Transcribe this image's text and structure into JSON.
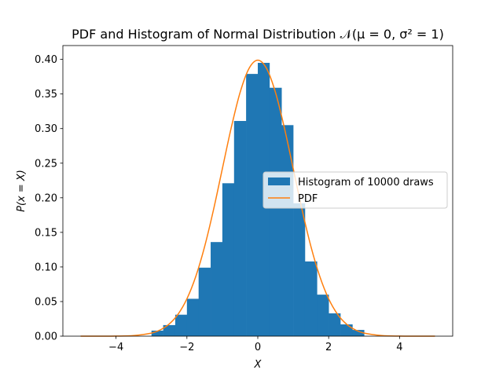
{
  "chart_data": {
    "type": "bar",
    "title": "PDF and Histogram of Normal Distribution 𝒩(μ = 0, σ² = 1)",
    "xlabel": "X",
    "ylabel": "P(x = X)",
    "xlim": [
      -5.5,
      5.5
    ],
    "ylim": [
      0,
      0.42
    ],
    "xticks": [
      -4,
      -2,
      0,
      2,
      4
    ],
    "xtick_labels": [
      "−4",
      "−2",
      "0",
      "2",
      "4"
    ],
    "yticks": [
      0,
      0.05,
      0.1,
      0.15,
      0.2,
      0.25,
      0.3,
      0.35,
      0.4
    ],
    "ytick_labels": [
      "0.00",
      "0.05",
      "0.10",
      "0.15",
      "0.20",
      "0.25",
      "0.30",
      "0.35",
      "0.40"
    ],
    "grid": false,
    "legend_position": "center-right",
    "histogram": {
      "name": "Histogram of 10000 draws",
      "color": "#1f77b4",
      "bin_edges": [
        -3.0,
        -2.67,
        -2.33,
        -2.0,
        -1.67,
        -1.33,
        -1.0,
        -0.67,
        -0.33,
        0.0,
        0.33,
        0.67,
        1.0,
        1.33,
        1.67,
        2.0,
        2.33,
        2.67,
        3.0
      ],
      "densities": [
        0.008,
        0.016,
        0.031,
        0.054,
        0.099,
        0.136,
        0.221,
        0.311,
        0.379,
        0.395,
        0.359,
        0.305,
        0.192,
        0.108,
        0.06,
        0.033,
        0.017,
        0.009
      ]
    },
    "pdf": {
      "name": "PDF",
      "color": "#ff7f0e",
      "x": [
        -5.0,
        -4.5,
        -4.0,
        -3.5,
        -3.0,
        -2.75,
        -2.5,
        -2.25,
        -2.0,
        -1.75,
        -1.5,
        -1.25,
        -1.0,
        -0.75,
        -0.5,
        -0.25,
        0.0,
        0.25,
        0.5,
        0.75,
        1.0,
        1.25,
        1.5,
        1.75,
        2.0,
        2.25,
        2.5,
        2.75,
        3.0,
        3.5,
        4.0,
        4.5,
        5.0
      ],
      "y": [
        0.0,
        0.0,
        0.0001,
        0.0009,
        0.0044,
        0.0091,
        0.0175,
        0.0317,
        0.054,
        0.0863,
        0.1295,
        0.1826,
        0.242,
        0.3011,
        0.3521,
        0.3867,
        0.3989,
        0.3867,
        0.3521,
        0.3011,
        0.242,
        0.1826,
        0.1295,
        0.0863,
        0.054,
        0.0317,
        0.0175,
        0.0091,
        0.0044,
        0.0009,
        0.0001,
        0.0,
        0.0
      ]
    }
  }
}
